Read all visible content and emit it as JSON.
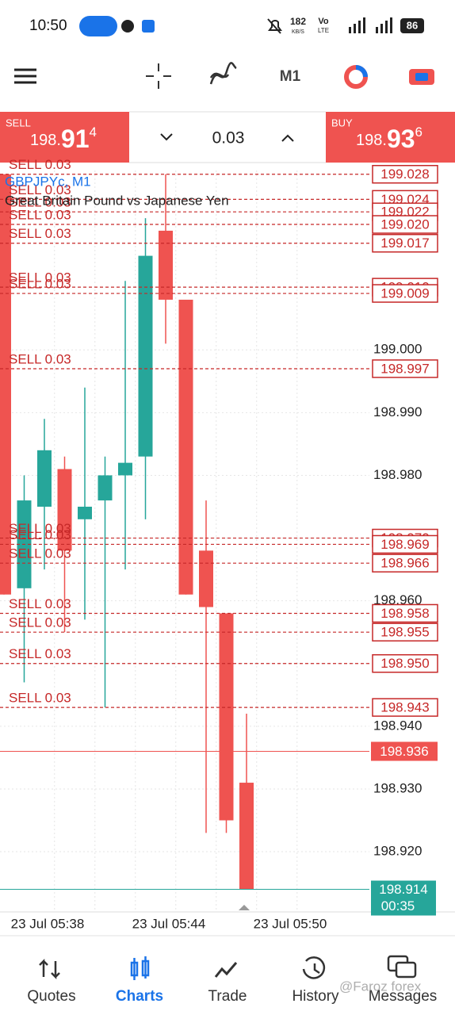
{
  "status_bar": {
    "time": "10:50",
    "speed": "182",
    "speed_unit": "KB/S",
    "network": "Vo",
    "network_type": "LTE",
    "battery": "86"
  },
  "toolbar": {
    "timeframe": "M1"
  },
  "trade_panel": {
    "sell": {
      "label": "SELL",
      "price_main": "198.",
      "price_big": "91",
      "price_sup": "4"
    },
    "volume": "0.03",
    "buy": {
      "label": "BUY",
      "price_main": "198.",
      "price_big": "93",
      "price_sup": "6"
    }
  },
  "chart_data": {
    "type": "candlestick",
    "title": "GBPJPYc, M1",
    "subtitle": "Great Britain Pound vs Japanese Yen",
    "categories": [
      null,
      null,
      "23 Jul 05:38",
      null,
      null,
      null,
      null,
      null,
      "23 Jul 05:44",
      null,
      null,
      null,
      null,
      null,
      "23 Jul 05:50",
      null
    ],
    "open": [
      199.028,
      198.962,
      198.975,
      198.981,
      198.973,
      198.976,
      198.98,
      198.983,
      199.019,
      199.008,
      198.968,
      198.958,
      198.931,
      null,
      null,
      null
    ],
    "high": [
      199.028,
      198.98,
      198.989,
      198.983,
      198.994,
      198.983,
      199.011,
      199.021,
      199.028,
      199.008,
      198.976,
      198.958,
      198.942,
      null,
      null,
      null
    ],
    "low": [
      198.961,
      198.947,
      198.965,
      198.955,
      198.957,
      198.943,
      198.965,
      198.973,
      199.001,
      198.961,
      198.923,
      198.923,
      198.914,
      null,
      null,
      null
    ],
    "close": [
      198.961,
      198.976,
      198.984,
      198.968,
      198.975,
      198.98,
      198.982,
      199.015,
      199.008,
      198.961,
      198.959,
      198.925,
      198.914,
      null,
      null,
      null
    ],
    "up_color": "#26a69a",
    "down_color": "#ef5350",
    "ylim": [
      198.9104,
      199.0286
    ],
    "yticks": [
      {
        "value": 199,
        "label": "199.000"
      },
      {
        "value": 198.99,
        "label": "198.990"
      },
      {
        "value": 198.98,
        "label": "198.980"
      },
      {
        "value": 198.97,
        "label": "198.970"
      },
      {
        "value": 198.96,
        "label": "198.960"
      },
      {
        "value": 198.95,
        "label": "198.950"
      },
      {
        "value": 198.94,
        "label": "198.940"
      },
      {
        "value": 198.93,
        "label": "198.930"
      },
      {
        "value": 198.92,
        "label": "198.920"
      }
    ],
    "grid": true,
    "orders": [
      {
        "label": "SELL 0.03",
        "price": 199.028
      },
      {
        "label": "SELL 0.03",
        "price": 199.024
      },
      {
        "label": "SELL 0.03",
        "price": 199.022
      },
      {
        "label": "SELL 0.03",
        "price": {
          "value": 199.02,
          "label": "199.020"
        }
      },
      {
        "label": "SELL 0.03",
        "price": 199.017
      },
      {
        "label": "SELL 0.03",
        "price": {
          "value": 199.01,
          "label": "199.010"
        }
      },
      {
        "label": "SELL 0.03",
        "price": 199.009
      },
      {
        "label": "SELL 0.03",
        "price": 198.997
      },
      {
        "label": "SELL 0.03",
        "price": {
          "value": 198.97,
          "label": "198.970"
        }
      },
      {
        "label": "SELL 0.03",
        "price": 198.969
      },
      {
        "label": "SELL 0.03",
        "price": 198.966
      },
      {
        "label": "SELL 0.03",
        "price": 198.958
      },
      {
        "label": "SELL 0.03",
        "price": 198.955
      },
      {
        "label": "SELL 0.03",
        "price": {
          "value": 198.95,
          "label": "198.950"
        }
      },
      {
        "label": "SELL 0.03",
        "price": 198.943
      }
    ],
    "order_color": "#c62828",
    "ask": {
      "price": 198.936,
      "color": "#ef5350"
    },
    "bid": {
      "price": 198.914,
      "countdown": "00:35",
      "color": "#26a69a"
    }
  },
  "nav": [
    {
      "label": "Quotes"
    },
    {
      "label": "Charts"
    },
    {
      "label": "Trade"
    },
    {
      "label": "History"
    },
    {
      "label": "Messages"
    }
  ],
  "watermark": "@Faroz forex"
}
